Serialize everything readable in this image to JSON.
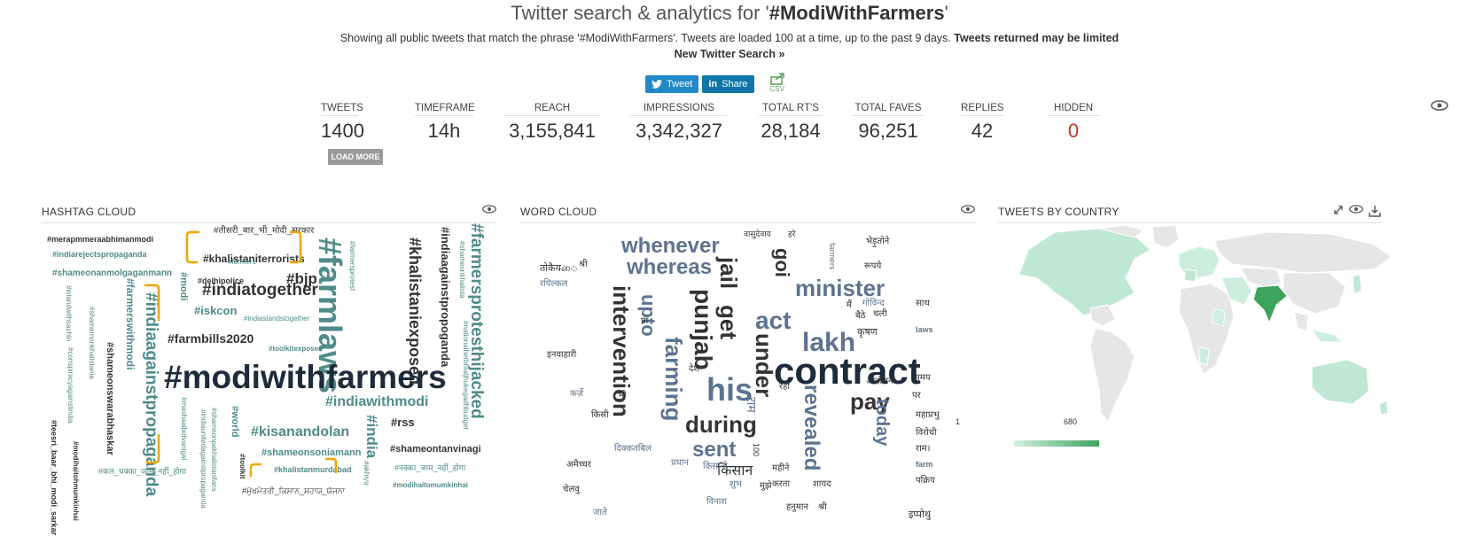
{
  "header": {
    "title_prefix": "Twitter search & analytics for '",
    "title_term": "#ModiWithFarmers",
    "title_suffix": "'",
    "description": "Showing all public tweets that match the phrase '#ModiWithFarmers'. Tweets are loaded 100 at a time, up to the past 9 days.",
    "description_bold": "Tweets returned may be limited",
    "new_search": "New Twitter Search »"
  },
  "share": {
    "tweet_label": "Tweet",
    "share_label": "Share",
    "csv_label": "CSV"
  },
  "stats": [
    {
      "label": "TWEETS",
      "value": "1400"
    },
    {
      "label": "TIMEFRAME",
      "value": "14h"
    },
    {
      "label": "REACH",
      "value": "3,155,841"
    },
    {
      "label": "IMPRESSIONS",
      "value": "3,342,327"
    },
    {
      "label": "TOTAL RT'S",
      "value": "28,184"
    },
    {
      "label": "TOTAL FAVES",
      "value": "96,251"
    },
    {
      "label": "REPLIES",
      "value": "42"
    },
    {
      "label": "HIDDEN",
      "value": "0"
    }
  ],
  "load_more": "LOAD MORE",
  "panels": {
    "hashtag": "HASHTAG CLOUD",
    "word": "WORD CLOUD",
    "country": "TWEETS BY COUNTRY"
  },
  "hashtag_words": [
    "#तीसरी_बार_भी_मोदी_सरकार",
    "#merapmmeraabhimanmodi",
    "#indiarejectspropaganda",
    "#shameonanmolgaganmann",
    "#khalistaniterrorists",
    "#delhipolice",
    "#bjp",
    "#farmlaws",
    "#khalistaniexposed",
    "#indiaagainstpropoganda",
    "#farmersprotesthijacked",
    "#indiatogether",
    "#iskcon",
    "#modi",
    "#indiaagainstpropaganda",
    "#farmerswithmodi",
    "#farmbills2020",
    "#modiwithfarmers",
    "#indiawithmodi",
    "#kisanandolan",
    "#india",
    "#rss",
    "#shameonsoniamann",
    "#khalistanmurdabad",
    "#shameontanvinagi",
    "#नक्का_जाम_नहीं_होगा",
    "#modihaitomumkinhai",
    "#कल_चक्का_जाम_नहीं_होगा",
    "#ਮੁੱਖਮੰਤਰੀ_ਕਿਸਾਨ_ਸਹਾਯ_ਯੋਜਨਾ",
    "#world",
    "#toolkit",
    "#shameonswarabhaskar",
    "#toolkitexposed",
    "#indiastandstogether",
    "#farmersprotest",
    "#istandwithsachin",
    "#shamemonkhalistania",
    "#conspiracyagainstindia",
    "#teesri_baar_bhi_modi_sarkar",
    "#modihaitohmumkinhai",
    "#shameonpakhalistanifans",
    "#mashaalbotvanigal",
    "#indiaunitedagainstpropaganda",
    "#nationalherbhiatjhukegadhbudget",
    "#akhiya",
    "#shameonkhalista",
    "#farmers"
  ],
  "word_words": [
    "whenever",
    "whereas",
    "jail",
    "get",
    "goi",
    "minister",
    "act",
    "lakh",
    "intervention",
    "upto",
    "farming",
    "punjab",
    "his",
    "under",
    "contract",
    "pay",
    "during",
    "sent",
    "revealed",
    "today",
    "किसान",
    "राम",
    "वासुदेवाय",
    "हरे",
    "तोकैयை",
    "रयिल्कल",
    "श्री",
    "इनवाहारी",
    "गोविन्द",
    "कृषण",
    "चली",
    "मैं",
    "बैठे",
    "साथ",
    "laws",
    "प्रधान",
    "किसानो",
    "शुभ",
    "महीने",
    "करता",
    "शायद",
    "हनुमान",
    "श्री",
    "विनाश",
    "100",
    "महाप्रभु",
    "विरोधी",
    "राम।",
    "farm",
    "पक्रिय",
    "इप्पोथु",
    "अमैच्चर",
    "चेलवु",
    "दिक्कतबिल",
    "प्रा",
    "देश",
    "रहा",
    "farmers",
    "भेड़ुतोने",
    "रूपये",
    "आंदोलन",
    "समय",
    "पर",
    "किसी",
    "कर्ज़े",
    "भी",
    "मुझे",
    "जाते"
  ],
  "map_legend": {
    "min": "1",
    "max": "680"
  }
}
